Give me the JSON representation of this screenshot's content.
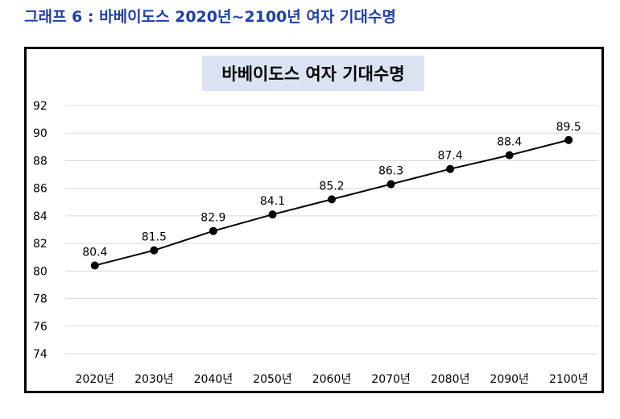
{
  "heading": "그래프 6 : 바베이도스 2020년~2100년 여자 기대수명",
  "chart_data": {
    "type": "line",
    "title": "바베이도스 여자 기대수명",
    "categories": [
      "2020년",
      "2030년",
      "2040년",
      "2050년",
      "2060년",
      "2070년",
      "2080년",
      "2090년",
      "2100년"
    ],
    "series": [
      {
        "values": [
          80.4,
          81.5,
          82.9,
          84.1,
          85.2,
          86.3,
          87.4,
          88.4,
          89.5
        ]
      }
    ],
    "data_labels": [
      "80.4",
      "81.5",
      "82.9",
      "84.1",
      "85.2",
      "86.3",
      "87.4",
      "88.4",
      "89.5"
    ],
    "y_ticks": [
      "74",
      "76",
      "78",
      "80",
      "82",
      "84",
      "86",
      "88",
      "90",
      "92"
    ],
    "ylim": [
      74,
      92
    ],
    "grid": true,
    "legend": "none",
    "colors": {
      "line": "#000000",
      "heading": "#1f3fa8",
      "title_background": "#dbe3f3"
    }
  }
}
